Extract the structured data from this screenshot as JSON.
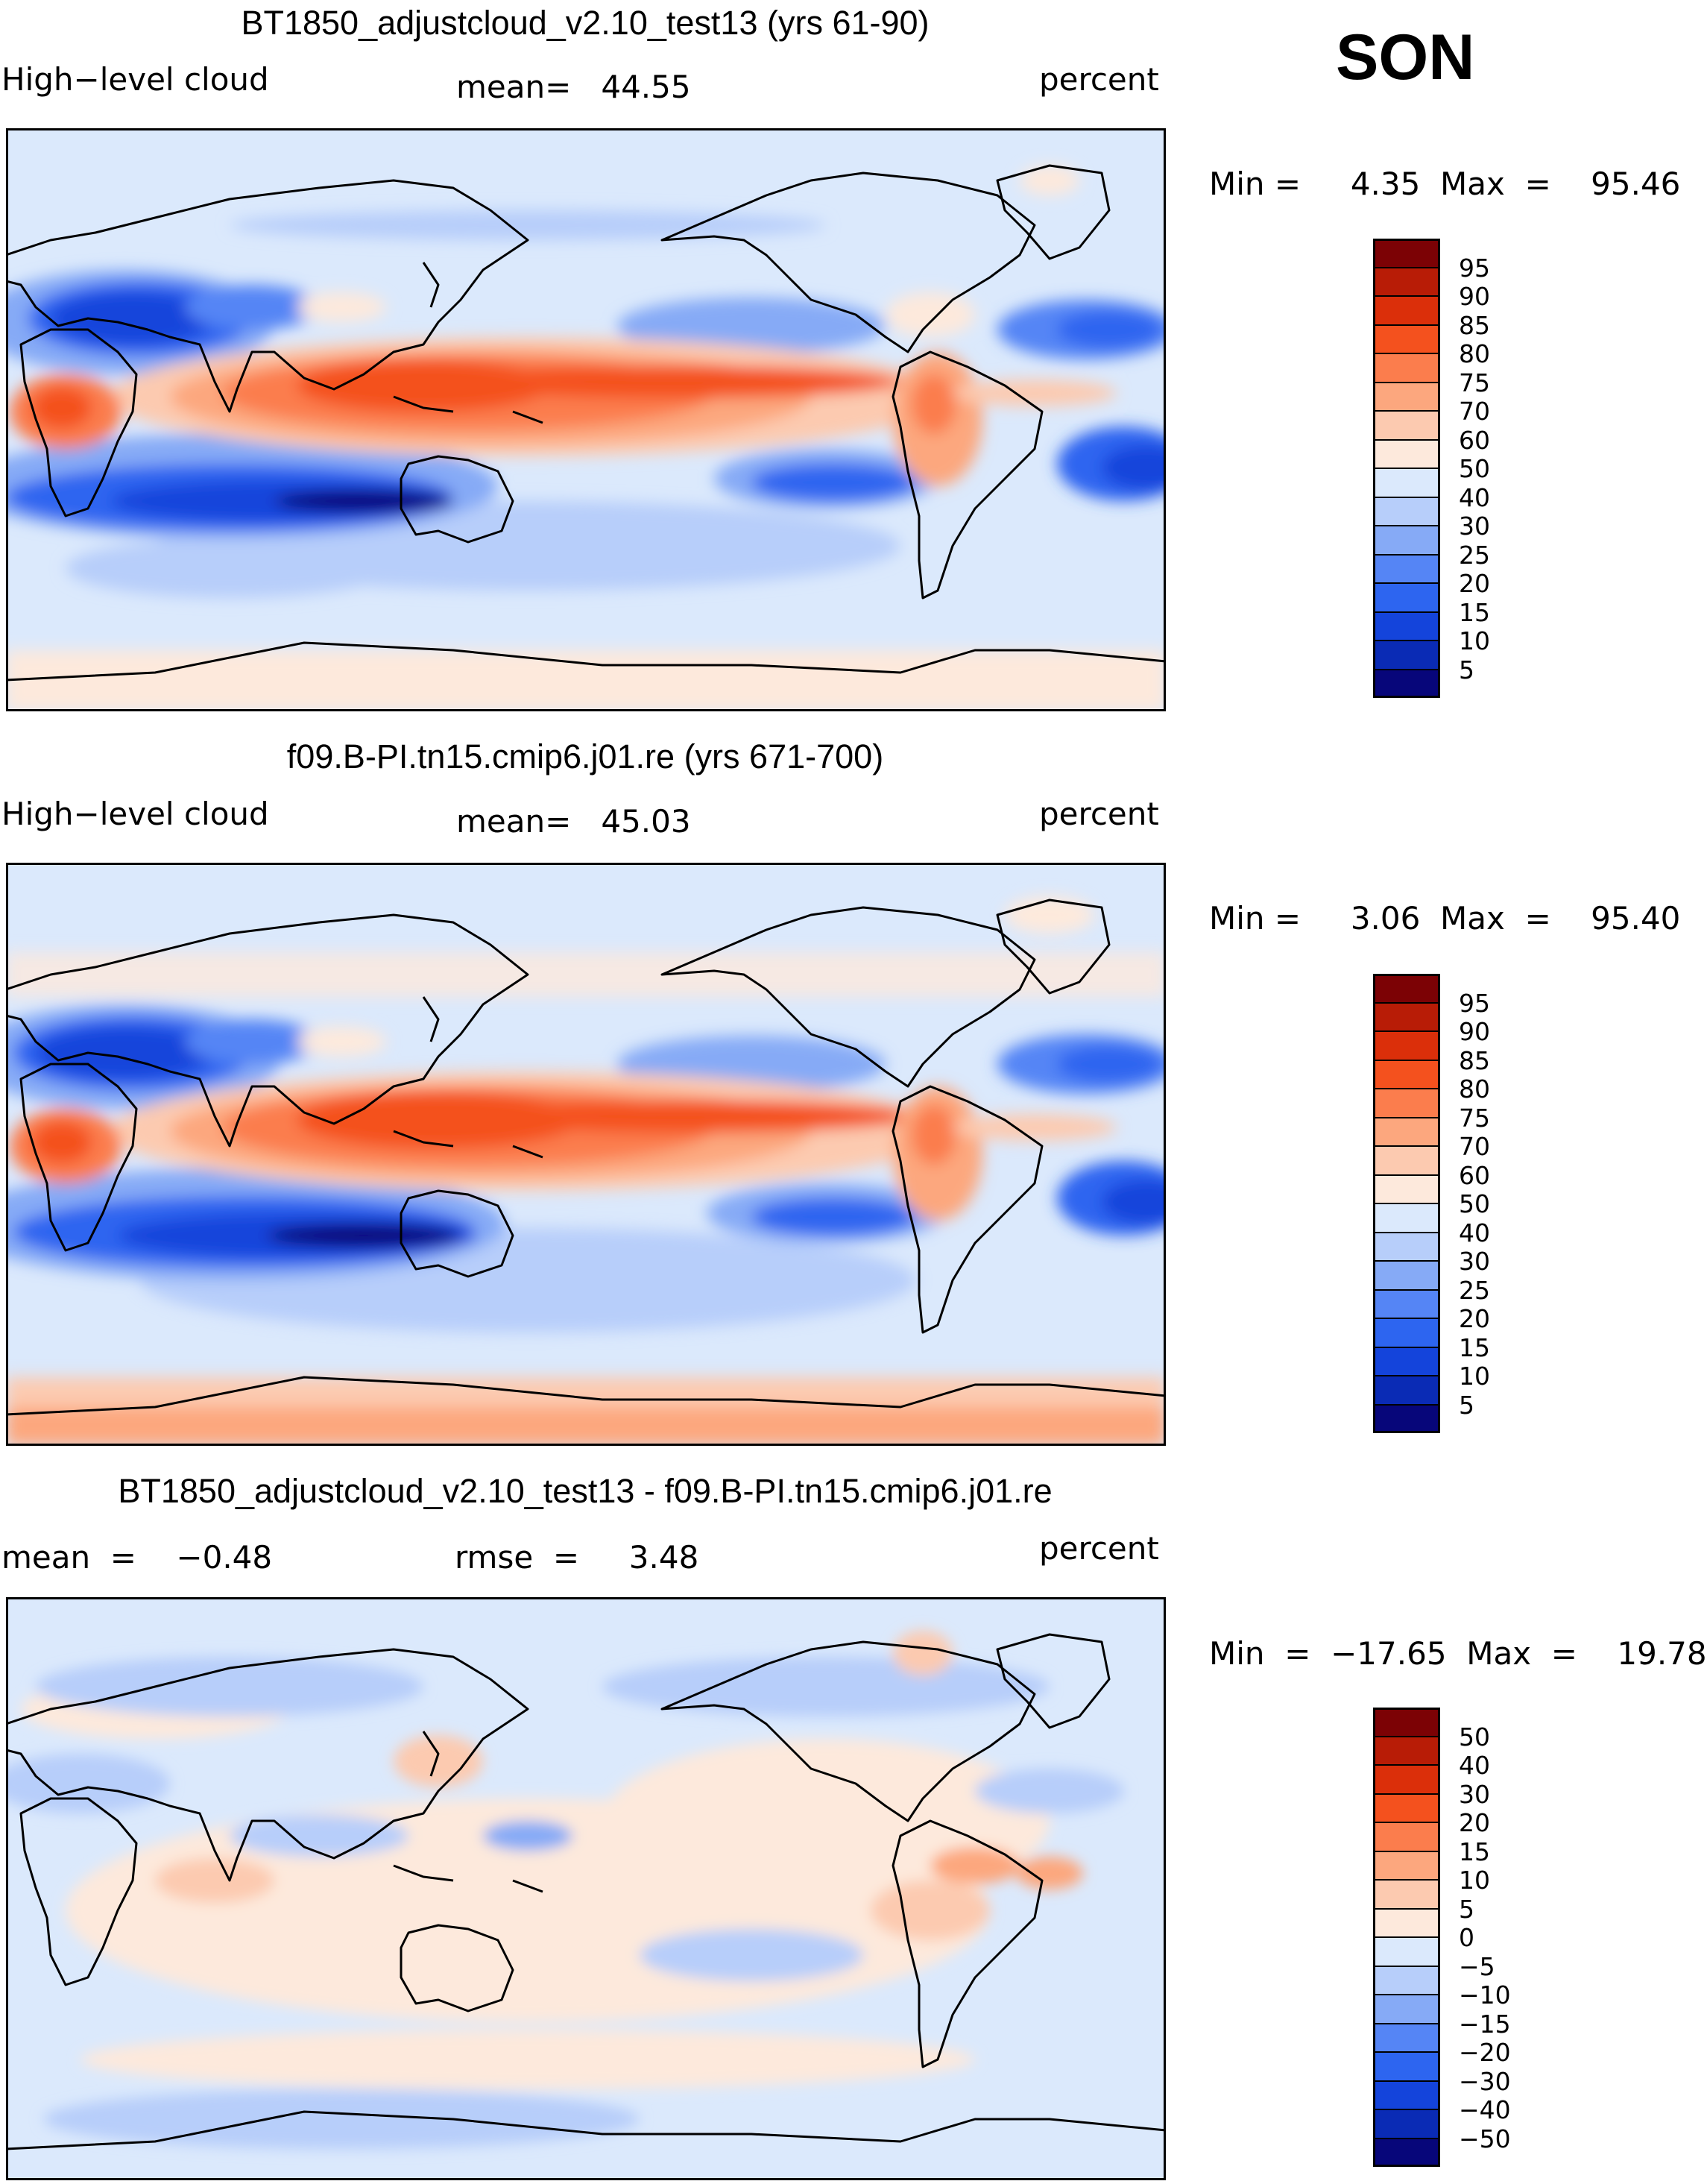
{
  "season": "SON",
  "colorbar_abs": {
    "colors": [
      "#07067a",
      "#0a2bb5",
      "#1444db",
      "#2d65f0",
      "#5585f5",
      "#86aaf6",
      "#b7cefa",
      "#dbe9fc",
      "#fde9dc",
      "#fccab0",
      "#fca77e",
      "#fb7d4d",
      "#f4511e",
      "#db2f0a",
      "#b81c06",
      "#7c0205"
    ],
    "labels": [
      "95",
      "90",
      "85",
      "80",
      "75",
      "70",
      "60",
      "50",
      "40",
      "30",
      "25",
      "20",
      "15",
      "10",
      "5"
    ]
  },
  "colorbar_diff": {
    "colors": [
      "#07067a",
      "#0a2bb5",
      "#1444db",
      "#2d65f0",
      "#5585f5",
      "#86aaf6",
      "#b7cefa",
      "#dbe9fc",
      "#fde9dc",
      "#fccab0",
      "#fca77e",
      "#fb7d4d",
      "#f4511e",
      "#db2f0a",
      "#b81c06",
      "#7c0205"
    ],
    "labels": [
      "50",
      "40",
      "30",
      "20",
      "15",
      "10",
      "5",
      "0",
      "−5",
      "−10",
      "−15",
      "−20",
      "−30",
      "−40",
      "−50"
    ]
  },
  "panels": [
    {
      "title": "BT1850_adjustcloud_v2.10_test13 (yrs 61-90)",
      "left_label": "High−level cloud",
      "center_label": "mean=   44.55",
      "right_label": "percent",
      "minmax": "Min =     4.35  Max  =    95.46",
      "type": "abs"
    },
    {
      "title": "f09.B-PI.tn15.cmip6.j01.re (yrs 671-700)",
      "left_label": "High−level cloud",
      "center_label": "mean=   45.03",
      "right_label": "percent",
      "minmax": "Min =     3.06  Max  =    95.40",
      "type": "abs"
    },
    {
      "title": "BT1850_adjustcloud_v2.10_test13 - f09.B-PI.tn15.cmip6.j01.re",
      "left_label": "mean  =    −0.48",
      "center_label": "rmse  =     3.48",
      "right_label": "percent",
      "minmax": "Min  =  −17.65  Max  =    19.78",
      "type": "diff"
    }
  ]
}
